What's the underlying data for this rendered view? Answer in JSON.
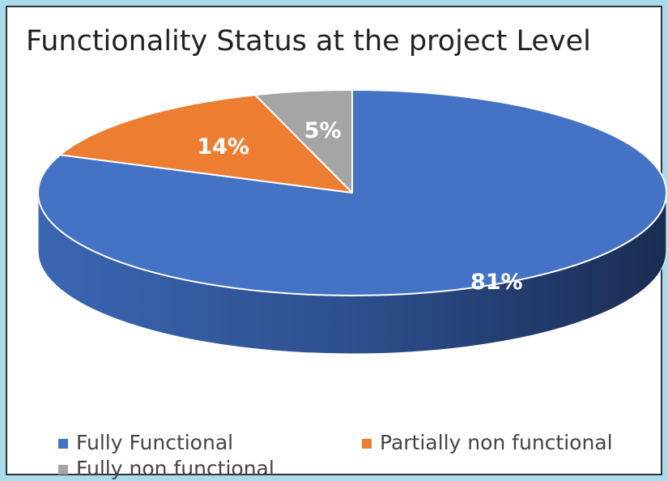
{
  "chart_data": {
    "type": "pie",
    "title": "Functionality Status at the project Level",
    "categories": [
      "Fully Functional",
      "Partially non functional",
      "Fully non functional"
    ],
    "values": [
      81,
      14,
      5
    ],
    "value_labels": [
      "81%",
      "14%",
      "5%"
    ],
    "colors": [
      "#4472c4",
      "#ed7d31",
      "#a5a5a5"
    ],
    "legend": "bottom"
  }
}
